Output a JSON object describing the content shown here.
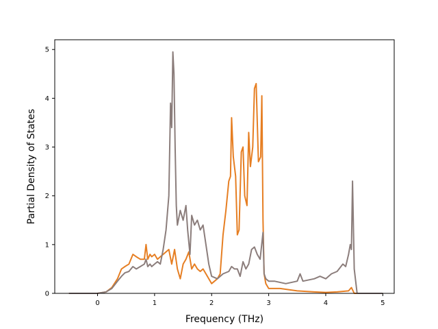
{
  "chart_data": {
    "type": "line",
    "xlabel": "Frequency (THz)",
    "ylabel": "Partial Density of States",
    "xlim": [
      -0.75,
      5.2
    ],
    "ylim": [
      0,
      5.2
    ],
    "xticks": [
      0,
      1,
      2,
      3,
      4,
      5
    ],
    "yticks": [
      0,
      1,
      2,
      3,
      4,
      5
    ],
    "grid": false,
    "series": [
      {
        "color": "#e67e22",
        "x": [
          -0.5,
          0.0,
          0.15,
          0.25,
          0.35,
          0.42,
          0.48,
          0.55,
          0.62,
          0.68,
          0.75,
          0.82,
          0.85,
          0.88,
          0.92,
          0.95,
          1.0,
          1.05,
          1.1,
          1.15,
          1.2,
          1.25,
          1.3,
          1.35,
          1.4,
          1.45,
          1.5,
          1.55,
          1.6,
          1.65,
          1.7,
          1.75,
          1.8,
          1.85,
          1.9,
          2.0,
          2.1,
          2.15,
          2.2,
          2.25,
          2.3,
          2.33,
          2.35,
          2.38,
          2.42,
          2.45,
          2.48,
          2.52,
          2.55,
          2.58,
          2.62,
          2.65,
          2.68,
          2.72,
          2.75,
          2.78,
          2.82,
          2.86,
          2.88,
          2.9,
          2.92,
          2.95,
          3.0,
          3.2,
          3.5,
          3.8,
          4.0,
          4.2,
          4.4,
          4.45,
          4.5,
          5.0
        ],
        "y": [
          0,
          0,
          0.03,
          0.12,
          0.3,
          0.5,
          0.55,
          0.6,
          0.8,
          0.75,
          0.7,
          0.7,
          1.0,
          0.7,
          0.8,
          0.75,
          0.8,
          0.7,
          0.75,
          0.8,
          0.85,
          0.9,
          0.6,
          0.9,
          0.5,
          0.3,
          0.6,
          0.7,
          0.85,
          0.5,
          0.6,
          0.5,
          0.45,
          0.5,
          0.4,
          0.2,
          0.3,
          0.4,
          1.2,
          1.7,
          2.3,
          2.4,
          3.6,
          2.8,
          2.4,
          1.2,
          1.3,
          2.9,
          3.0,
          2.0,
          1.8,
          3.3,
          2.6,
          3.0,
          4.2,
          4.3,
          2.7,
          2.8,
          4.05,
          1.5,
          0.4,
          0.2,
          0.1,
          0.1,
          0.05,
          0.03,
          0.02,
          0.03,
          0.05,
          0.12,
          0.0,
          0.0
        ]
      },
      {
        "color": "#8b7d7b",
        "x": [
          -0.5,
          0.0,
          0.15,
          0.25,
          0.35,
          0.42,
          0.48,
          0.55,
          0.62,
          0.68,
          0.75,
          0.82,
          0.85,
          0.88,
          0.92,
          0.95,
          1.0,
          1.05,
          1.1,
          1.15,
          1.2,
          1.25,
          1.28,
          1.3,
          1.32,
          1.34,
          1.36,
          1.38,
          1.4,
          1.45,
          1.5,
          1.55,
          1.58,
          1.62,
          1.65,
          1.7,
          1.75,
          1.8,
          1.85,
          1.9,
          1.95,
          2.0,
          2.1,
          2.2,
          2.3,
          2.35,
          2.4,
          2.45,
          2.5,
          2.55,
          2.6,
          2.65,
          2.7,
          2.75,
          2.8,
          2.85,
          2.9,
          2.92,
          2.95,
          3.0,
          3.1,
          3.3,
          3.5,
          3.55,
          3.6,
          3.8,
          3.9,
          4.0,
          4.1,
          4.2,
          4.3,
          4.35,
          4.4,
          4.43,
          4.45,
          4.47,
          4.5,
          4.55,
          5.0
        ],
        "y": [
          0,
          0,
          0.03,
          0.1,
          0.25,
          0.35,
          0.42,
          0.45,
          0.55,
          0.5,
          0.55,
          0.6,
          0.7,
          0.55,
          0.6,
          0.55,
          0.6,
          0.65,
          0.6,
          0.9,
          1.3,
          2.0,
          3.9,
          3.4,
          4.95,
          4.5,
          3.0,
          1.8,
          1.4,
          1.7,
          1.5,
          1.8,
          1.3,
          0.8,
          1.6,
          1.4,
          1.5,
          1.3,
          1.4,
          1.0,
          0.6,
          0.35,
          0.3,
          0.4,
          0.45,
          0.55,
          0.5,
          0.5,
          0.35,
          0.65,
          0.5,
          0.6,
          0.9,
          0.95,
          0.8,
          0.7,
          1.25,
          0.4,
          0.3,
          0.25,
          0.25,
          0.2,
          0.25,
          0.4,
          0.25,
          0.3,
          0.35,
          0.3,
          0.4,
          0.45,
          0.6,
          0.55,
          0.8,
          1.0,
          0.9,
          2.3,
          0.5,
          0.0,
          0.0
        ]
      }
    ]
  }
}
